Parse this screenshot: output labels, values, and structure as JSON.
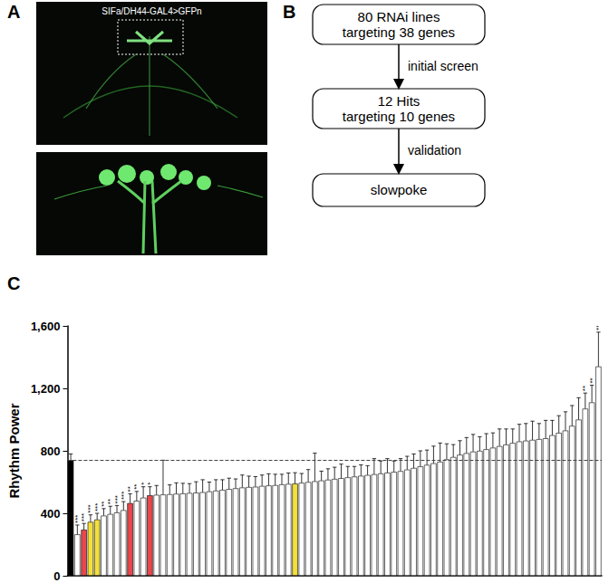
{
  "panel_a": {
    "label": "A",
    "caption": "SIFa/DH44-GAL4>GFPn"
  },
  "panel_b": {
    "label": "B",
    "steps": [
      [
        "80 RNAi lines",
        "targeting 38 genes"
      ],
      [
        "12 Hits",
        "targeting 10 genes"
      ],
      [
        "slowpoke"
      ]
    ],
    "transitions": [
      "initial screen",
      "validation"
    ]
  },
  "panel_c": {
    "label": "C"
  },
  "chart_data": {
    "type": "bar",
    "y_label": "Rhythm Power",
    "categories": [
      null,
      null,
      null,
      null,
      null,
      null,
      null,
      null,
      null,
      null,
      null,
      null,
      null,
      null,
      null,
      null,
      null,
      null,
      null,
      null,
      null,
      null,
      null,
      null,
      null,
      null,
      null,
      null,
      null,
      null,
      null,
      null,
      null,
      null,
      null,
      null,
      null,
      null,
      null,
      null,
      null,
      null,
      null,
      null,
      null,
      null,
      null,
      null,
      null,
      null,
      null,
      null,
      null,
      null,
      null,
      null,
      null,
      null,
      null,
      null,
      null,
      null,
      null,
      null,
      null,
      null,
      null,
      null,
      null,
      null,
      null,
      null,
      null,
      null,
      null,
      null,
      null,
      null,
      null,
      null,
      null
    ],
    "values": [
      740,
      265,
      295,
      345,
      360,
      385,
      395,
      405,
      420,
      465,
      480,
      500,
      515,
      518,
      520,
      522,
      525,
      527,
      530,
      532,
      535,
      540,
      545,
      550,
      555,
      560,
      565,
      568,
      570,
      575,
      578,
      580,
      585,
      588,
      590,
      595,
      600,
      605,
      610,
      615,
      620,
      625,
      630,
      635,
      640,
      645,
      650,
      655,
      660,
      665,
      670,
      680,
      690,
      700,
      710,
      720,
      730,
      745,
      760,
      775,
      785,
      795,
      800,
      810,
      820,
      830,
      840,
      850,
      860,
      865,
      870,
      875,
      880,
      900,
      915,
      930,
      960,
      1000,
      1070,
      1110,
      1340
    ],
    "errors": [
      40,
      60,
      40,
      45,
      40,
      45,
      50,
      45,
      55,
      60,
      60,
      70,
      55,
      60,
      220,
      60,
      70,
      65,
      60,
      70,
      80,
      60,
      70,
      65,
      70,
      60,
      80,
      70,
      65,
      70,
      75,
      70,
      65,
      70,
      70,
      60,
      80,
      180,
      60,
      70,
      75,
      90,
      70,
      65,
      70,
      60,
      100,
      80,
      90,
      70,
      80,
      85,
      90,
      100,
      95,
      110,
      120,
      100,
      80,
      90,
      100,
      110,
      90,
      100,
      95,
      110,
      100,
      90,
      110,
      110,
      120,
      100,
      115,
      95,
      110,
      120,
      130,
      140,
      100,
      110,
      220
    ],
    "significance": [
      null,
      "***",
      "***",
      "***",
      "***",
      "**",
      "**",
      "***",
      "***",
      "**",
      "**",
      "*",
      "*",
      null,
      null,
      null,
      null,
      null,
      null,
      null,
      null,
      null,
      null,
      null,
      null,
      null,
      null,
      null,
      null,
      null,
      null,
      null,
      null,
      null,
      null,
      null,
      null,
      null,
      null,
      null,
      null,
      null,
      null,
      null,
      null,
      null,
      null,
      null,
      null,
      null,
      null,
      null,
      null,
      null,
      null,
      null,
      null,
      null,
      null,
      null,
      null,
      null,
      null,
      null,
      null,
      null,
      null,
      null,
      null,
      null,
      null,
      null,
      null,
      null,
      null,
      null,
      null,
      null,
      "**",
      "**",
      "***"
    ],
    "colors": [
      "#000000",
      "#ffffff",
      "#e8474c",
      "#f4e03c",
      "#f4e03c",
      "#ffffff",
      "#ffffff",
      "#ffffff",
      "#ffffff",
      "#e8474c",
      "#ffffff",
      "#ffffff",
      "#e8474c",
      "#ffffff",
      "#ffffff",
      "#ffffff",
      "#ffffff",
      "#ffffff",
      "#ffffff",
      "#ffffff",
      "#ffffff",
      "#ffffff",
      "#ffffff",
      "#ffffff",
      "#ffffff",
      "#ffffff",
      "#ffffff",
      "#ffffff",
      "#ffffff",
      "#ffffff",
      "#ffffff",
      "#ffffff",
      "#ffffff",
      "#ffffff",
      "#f4e03c",
      "#ffffff",
      "#ffffff",
      "#ffffff",
      "#ffffff",
      "#ffffff",
      "#ffffff",
      "#ffffff",
      "#ffffff",
      "#ffffff",
      "#ffffff",
      "#ffffff",
      "#ffffff",
      "#ffffff",
      "#ffffff",
      "#ffffff",
      "#ffffff",
      "#ffffff",
      "#ffffff",
      "#ffffff",
      "#ffffff",
      "#ffffff",
      "#ffffff",
      "#ffffff",
      "#ffffff",
      "#ffffff",
      "#ffffff",
      "#ffffff",
      "#ffffff",
      "#ffffff",
      "#ffffff",
      "#ffffff",
      "#ffffff",
      "#ffffff",
      "#ffffff",
      "#ffffff",
      "#ffffff",
      "#ffffff",
      "#ffffff",
      "#ffffff",
      "#ffffff",
      "#ffffff",
      "#ffffff",
      "#ffffff",
      "#ffffff",
      "#ffffff",
      "#ffffff"
    ],
    "ylim": [
      0,
      1600
    ],
    "yticks": [
      0,
      400,
      800,
      1200,
      1600
    ],
    "grid": false,
    "tick_labels": "y"
  }
}
